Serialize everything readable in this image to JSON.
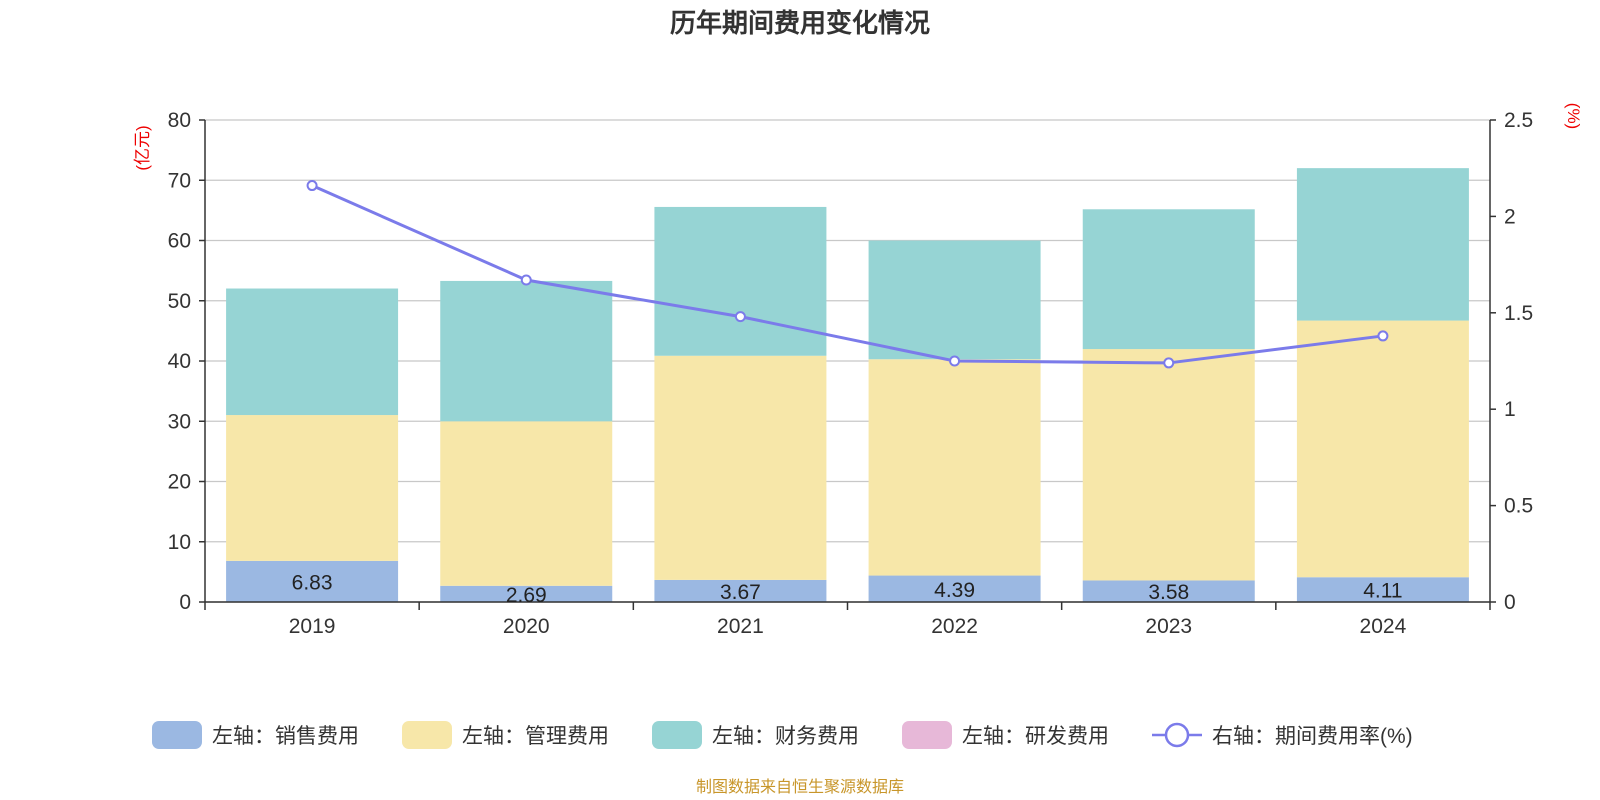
{
  "title": "历年期间费用变化情况",
  "source": "制图数据来自恒生聚源数据库",
  "chart_data": {
    "type": "bar",
    "stacked": true,
    "categories": [
      "2019",
      "2020",
      "2021",
      "2022",
      "2023",
      "2024"
    ],
    "left_axis": {
      "unit": "(亿元)",
      "ylim": [
        0,
        80
      ],
      "ticks": [
        "0",
        "10",
        "20",
        "30",
        "40",
        "50",
        "60",
        "70",
        "80"
      ]
    },
    "right_axis": {
      "unit": "(%)",
      "ylim": [
        0,
        2.5
      ],
      "ticks": [
        "0",
        "0.5",
        "1",
        "1.5",
        "2",
        "2.5"
      ]
    },
    "series": [
      {
        "name": "销售费用",
        "legend": "左轴：销售费用",
        "axis": "left",
        "color": "#9bb8e2",
        "values": [
          6.83,
          2.69,
          3.67,
          4.39,
          3.58,
          4.11
        ],
        "labels": [
          "6.83",
          "2.69",
          "3.67",
          "4.39",
          "3.58",
          "4.11"
        ]
      },
      {
        "name": "管理费用",
        "legend": "左轴：管理费用",
        "axis": "left",
        "color": "#f7e7a9",
        "values": [
          24.2,
          27.3,
          37.2,
          35.9,
          38.4,
          42.6
        ]
      },
      {
        "name": "财务费用",
        "legend": "左轴：财务费用",
        "axis": "left",
        "color": "#96d4d4",
        "values": [
          21.0,
          23.3,
          24.7,
          19.7,
          23.2,
          25.3
        ]
      },
      {
        "name": "研发费用",
        "legend": "左轴：研发费用",
        "axis": "left",
        "color": "#e7b8d8",
        "values": [
          0,
          0,
          0,
          0,
          0,
          0
        ]
      }
    ],
    "line": {
      "name": "期间费用率(%)",
      "legend": "右轴：期间费用率(%)",
      "axis": "right",
      "color": "#7b7bea",
      "values": [
        2.16,
        1.67,
        1.48,
        1.25,
        1.24,
        1.38
      ]
    }
  }
}
